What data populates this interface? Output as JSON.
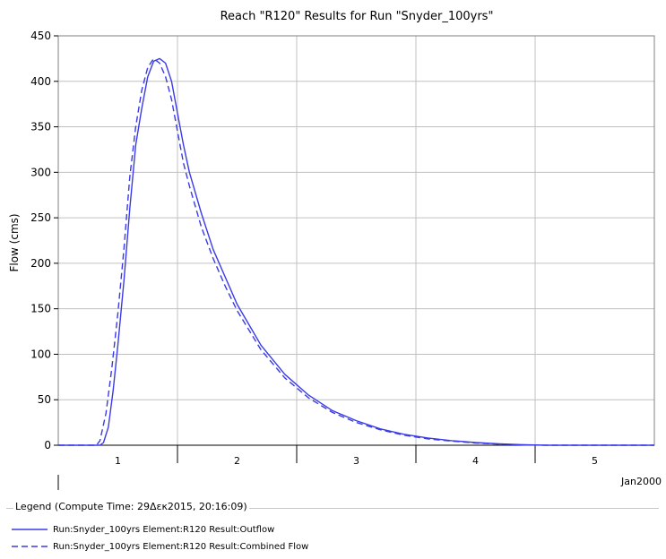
{
  "chart_data": {
    "type": "line",
    "title": "Reach \"R120\" Results for Run \"Snyder_100yrs\"",
    "ylabel": "Flow (cms)",
    "xlabel": "",
    "ylim": [
      0,
      450
    ],
    "xlim": [
      0.5,
      5.5
    ],
    "yticks": [
      0,
      50,
      100,
      150,
      200,
      250,
      300,
      350,
      400,
      450
    ],
    "x_gridlines": [
      1.5,
      2.5,
      3.5,
      4.5
    ],
    "x_day_labels": [
      {
        "label": "1",
        "x": 1
      },
      {
        "label": "2",
        "x": 2
      },
      {
        "label": "3",
        "x": 3
      },
      {
        "label": "4",
        "x": 4
      },
      {
        "label": "5",
        "x": 5
      }
    ],
    "x_period_label": "Jan2000",
    "grid": true,
    "series": [
      {
        "name": "Run:Snyder_100yrs Element:R120 Result:Outflow",
        "color": "#3a3ae8",
        "dash": "solid",
        "x": [
          0.5,
          0.75,
          0.85,
          0.88,
          0.92,
          0.96,
          1.0,
          1.05,
          1.1,
          1.15,
          1.2,
          1.25,
          1.3,
          1.35,
          1.4,
          1.45,
          1.5,
          1.55,
          1.6,
          1.7,
          1.8,
          1.9,
          2.0,
          2.2,
          2.4,
          2.6,
          2.8,
          3.0,
          3.2,
          3.4,
          3.6,
          3.8,
          4.0,
          4.2,
          4.4,
          4.6,
          5.0,
          5.5
        ],
        "y": [
          0,
          0,
          0,
          3,
          20,
          60,
          110,
          180,
          260,
          330,
          370,
          405,
          422,
          425,
          420,
          400,
          365,
          330,
          300,
          255,
          215,
          185,
          155,
          110,
          78,
          55,
          38,
          27,
          18,
          12,
          8,
          5,
          3,
          1.5,
          0.5,
          0,
          0,
          0
        ]
      },
      {
        "name": "Run:Snyder_100yrs Element:R120 Result:Combined Flow",
        "color": "#3a3ae8",
        "dash": "dashed",
        "x": [
          0.5,
          0.75,
          0.82,
          0.85,
          0.9,
          0.95,
          1.0,
          1.05,
          1.1,
          1.15,
          1.2,
          1.25,
          1.3,
          1.35,
          1.4,
          1.45,
          1.5,
          1.55,
          1.6,
          1.7,
          1.8,
          1.9,
          2.0,
          2.2,
          2.4,
          2.6,
          2.8,
          3.0,
          3.2,
          3.4,
          3.6,
          3.8,
          4.0,
          4.2,
          4.4,
          4.6,
          5.0,
          5.5
        ],
        "y": [
          0,
          0,
          0,
          5,
          35,
          85,
          145,
          215,
          295,
          350,
          390,
          415,
          425,
          420,
          405,
          380,
          345,
          310,
          285,
          240,
          205,
          175,
          148,
          105,
          74,
          52,
          36,
          25,
          17,
          11,
          7,
          4.5,
          2.5,
          1.2,
          0.4,
          0,
          0,
          0
        ]
      }
    ],
    "legend_placement": "bottom"
  },
  "legend": {
    "title": "Legend (Compute Time: 29Δεκ2015, 20:16:09)",
    "items": [
      {
        "label": "Run:Snyder_100yrs Element:R120 Result:Outflow"
      },
      {
        "label": "Run:Snyder_100yrs Element:R120 Result:Combined Flow"
      }
    ]
  }
}
